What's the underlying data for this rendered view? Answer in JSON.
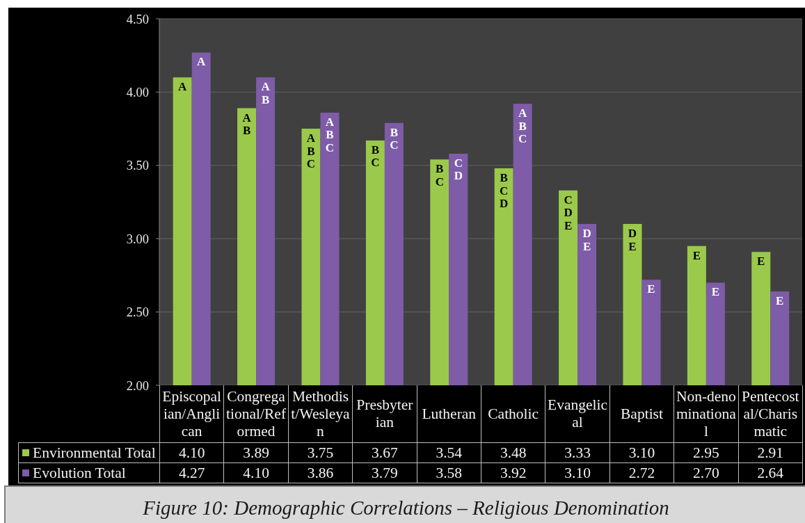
{
  "chart_data": {
    "type": "bar",
    "categories": [
      "Episcopalian/Anglican",
      "Congregational/Reformed",
      "Methodist/Wesleyan",
      "Presbyterian",
      "Lutheran",
      "Catholic",
      "Evangelical",
      "Baptist",
      "Non-denominational",
      "Pentecostal/Charismatic"
    ],
    "series": [
      {
        "name": "Environmental Total",
        "color": "#9bc94b",
        "values": [
          4.1,
          3.89,
          3.75,
          3.67,
          3.54,
          3.48,
          3.33,
          3.1,
          2.95,
          2.91
        ],
        "value_labels": [
          "4.10",
          "3.89",
          "3.75",
          "3.67",
          "3.54",
          "3.48",
          "3.33",
          "3.10",
          "2.95",
          "2.91"
        ]
      },
      {
        "name": "Evolution Total",
        "color": "#7e5ca8",
        "values": [
          4.27,
          4.1,
          3.86,
          3.79,
          3.58,
          3.92,
          3.1,
          2.72,
          2.7,
          2.64
        ],
        "value_labels": [
          "4.27",
          "4.10",
          "3.86",
          "3.79",
          "3.58",
          "3.92",
          "3.10",
          "2.72",
          "2.70",
          "2.64"
        ]
      }
    ],
    "ylim": [
      2.0,
      4.5
    ],
    "yticks": [
      {
        "value": 2.0,
        "label": "2.00"
      },
      {
        "value": 2.5,
        "label": "2.50"
      },
      {
        "value": 3.0,
        "label": "3.00"
      },
      {
        "value": 3.5,
        "label": "3.50"
      },
      {
        "value": 4.0,
        "label": "4.00"
      },
      {
        "value": 4.5,
        "label": "4.50"
      }
    ],
    "grid": "y",
    "legend": "bottom",
    "annotations": [
      {
        "text": "A",
        "x": "Episcopalian/Anglican",
        "y": 4.1
      },
      {
        "text": "A",
        "x": "Episcopalian/Anglican",
        "y": 4.27
      },
      {
        "text": "A B",
        "x": "Congregational/Reformed",
        "y": 3.89
      },
      {
        "text": "A B",
        "x": "Congregational/Reformed",
        "y": 4.1
      },
      {
        "text": "A B C",
        "x": "Methodist/Wesleyan",
        "y": 3.75
      },
      {
        "text": "A B C",
        "x": "Methodist/Wesleyan",
        "y": 3.86
      },
      {
        "text": "B C",
        "x": "Presbyterian",
        "y": 3.67
      },
      {
        "text": "B C",
        "x": "Presbyterian",
        "y": 3.79
      },
      {
        "text": "B C",
        "x": "Lutheran",
        "y": 3.54
      },
      {
        "text": "C D",
        "x": "Lutheran",
        "y": 3.58
      },
      {
        "text": "B C D",
        "x": "Catholic",
        "y": 3.48
      },
      {
        "text": "A B C",
        "x": "Catholic",
        "y": 3.92
      },
      {
        "text": "C D E",
        "x": "Evangelical",
        "y": 3.33
      },
      {
        "text": "D E",
        "x": "Evangelical",
        "y": 3.1
      },
      {
        "text": "D E",
        "x": "Baptist",
        "y": 3.1
      },
      {
        "text": "E",
        "x": "Baptist",
        "y": 2.72
      },
      {
        "text": "E",
        "x": "Non-denominational",
        "y": 2.95
      },
      {
        "text": "E",
        "x": "Non-denominational",
        "y": 2.7
      },
      {
        "text": "E",
        "x": "Pentecostal/Charismatic",
        "y": 2.91
      },
      {
        "text": "E",
        "x": "Pentecostal/Charismatic",
        "y": 2.64
      },
      "Figure 10: Demographic Correlations – Religious Denomination"
    ]
  }
}
